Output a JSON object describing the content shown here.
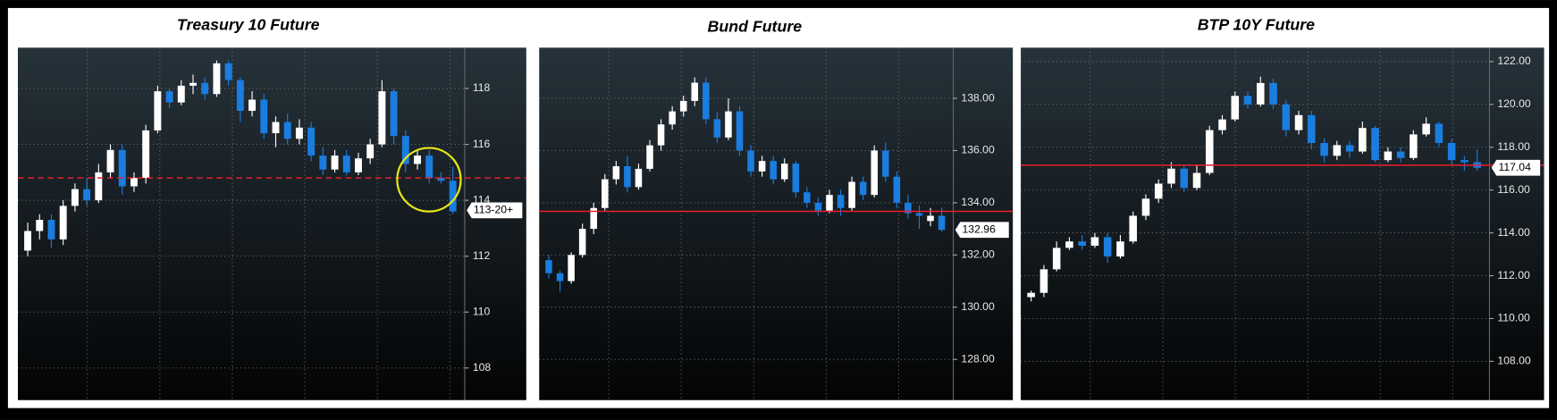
{
  "chart_data": [
    {
      "type": "candlestick",
      "title": "Treasury 10 Future",
      "open": [
        112.2,
        112.9,
        113.3,
        112.6,
        113.8,
        114.4,
        114.0,
        115.0,
        115.8,
        114.5,
        114.8,
        116.5,
        117.9,
        117.5,
        118.1,
        118.2,
        117.8,
        118.9,
        118.3,
        117.2,
        117.6,
        116.4,
        116.8,
        116.2,
        116.6,
        115.6,
        115.1,
        115.6,
        115.0,
        115.5,
        116.0,
        117.9,
        116.3,
        115.3,
        115.6,
        114.8,
        114.7
      ],
      "high": [
        113.2,
        113.5,
        113.5,
        114.0,
        114.6,
        114.8,
        115.3,
        116.0,
        116.0,
        115.0,
        116.7,
        118.1,
        118.0,
        118.3,
        118.5,
        118.4,
        119.0,
        119.0,
        118.4,
        117.9,
        117.8,
        117.0,
        117.1,
        116.9,
        116.8,
        115.9,
        115.8,
        115.8,
        115.7,
        116.2,
        118.3,
        118.0,
        116.5,
        115.8,
        115.8,
        115.0,
        115.2
      ],
      "low": [
        112.0,
        112.6,
        112.3,
        112.4,
        113.6,
        113.8,
        113.9,
        114.8,
        114.2,
        114.3,
        114.6,
        116.4,
        117.3,
        117.4,
        117.8,
        117.6,
        117.7,
        118.1,
        116.8,
        117.0,
        116.2,
        115.9,
        116.0,
        116.0,
        115.4,
        114.9,
        115.0,
        114.9,
        114.9,
        115.3,
        115.9,
        116.0,
        115.0,
        115.1,
        114.6,
        114.6,
        113.5
      ],
      "close": [
        112.9,
        113.3,
        112.6,
        113.8,
        114.4,
        114.0,
        115.0,
        115.8,
        114.5,
        114.8,
        116.5,
        117.9,
        117.5,
        118.1,
        118.2,
        117.8,
        118.9,
        118.3,
        117.2,
        117.6,
        116.4,
        116.8,
        116.2,
        116.6,
        115.6,
        115.1,
        115.6,
        115.0,
        115.5,
        116.0,
        117.9,
        116.3,
        115.3,
        115.6,
        114.8,
        114.7,
        113.6
      ],
      "ylim": [
        106.85,
        119.46
      ],
      "yticks": [
        108,
        110,
        112,
        114,
        116,
        118
      ],
      "ref_line": 114.8,
      "ref_dashed": true,
      "last_price": {
        "value": 113.640625,
        "label": "113-20+"
      },
      "up_color": "#ffffff",
      "down_color": "#1a7de0",
      "ref_color": "#e8202a",
      "grid": true
    },
    {
      "type": "candlestick",
      "title": "Bund Future",
      "open": [
        131.8,
        131.3,
        131.0,
        132.0,
        133.0,
        133.8,
        134.9,
        135.4,
        134.6,
        135.3,
        136.2,
        137.0,
        137.5,
        137.9,
        138.6,
        137.2,
        136.5,
        137.5,
        136.0,
        135.2,
        135.6,
        134.9,
        135.5,
        134.4,
        134.0,
        133.7,
        134.3,
        133.8,
        134.8,
        134.3,
        136.0,
        135.0,
        134.0,
        133.6,
        133.3,
        133.5
      ],
      "high": [
        132.0,
        131.4,
        132.1,
        133.2,
        134.0,
        135.1,
        135.6,
        135.8,
        135.5,
        136.4,
        137.2,
        137.7,
        138.1,
        138.8,
        138.8,
        137.5,
        138.0,
        137.7,
        136.2,
        135.8,
        135.8,
        135.7,
        135.6,
        134.6,
        134.2,
        134.5,
        134.5,
        135.0,
        135.0,
        136.2,
        136.3,
        135.2,
        134.3,
        133.9,
        133.8,
        133.8
      ],
      "low": [
        131.1,
        130.6,
        130.9,
        131.9,
        132.8,
        133.7,
        134.7,
        134.4,
        134.5,
        135.2,
        136.0,
        136.8,
        137.3,
        137.7,
        137.0,
        136.3,
        136.4,
        135.8,
        135.0,
        135.0,
        134.7,
        134.8,
        134.2,
        133.8,
        133.5,
        133.6,
        133.5,
        133.7,
        134.1,
        134.2,
        134.8,
        133.8,
        133.4,
        133.0,
        133.1,
        132.9
      ],
      "close": [
        131.3,
        131.0,
        132.0,
        133.0,
        133.8,
        134.9,
        135.4,
        134.6,
        135.3,
        136.2,
        137.0,
        137.5,
        137.9,
        138.6,
        137.2,
        136.5,
        137.5,
        136.0,
        135.2,
        135.6,
        134.9,
        135.5,
        134.4,
        134.0,
        133.7,
        134.3,
        133.8,
        134.8,
        134.3,
        136.0,
        135.0,
        134.0,
        133.6,
        133.5,
        133.5,
        132.96
      ],
      "ylim": [
        126.44,
        139.94
      ],
      "yticks": [
        {
          "value": 128,
          "label": "128.00"
        },
        {
          "value": 130,
          "label": "130.00"
        },
        {
          "value": 132,
          "label": "132.00"
        },
        {
          "value": 134,
          "label": "134.00"
        },
        {
          "value": 136,
          "label": "136.00"
        },
        {
          "value": 138,
          "label": "138.00"
        }
      ],
      "ref_line": 133.67,
      "ref_dashed": false,
      "last_price": 132.96,
      "up_color": "#ffffff",
      "down_color": "#1a7de0",
      "ref_color": "#e8202a",
      "grid": true
    },
    {
      "type": "candlestick",
      "title": "BTP 10Y Future",
      "open": [
        111.0,
        111.2,
        112.3,
        113.3,
        113.6,
        113.4,
        113.8,
        112.9,
        113.6,
        114.8,
        115.6,
        116.3,
        117.0,
        116.1,
        116.8,
        118.8,
        119.3,
        120.4,
        120.0,
        121.0,
        120.0,
        118.8,
        119.5,
        118.2,
        117.6,
        118.1,
        117.8,
        118.9,
        117.4,
        117.8,
        117.5,
        118.6,
        119.1,
        118.2,
        117.4,
        117.3
      ],
      "high": [
        111.3,
        112.5,
        113.6,
        113.8,
        113.9,
        114.0,
        114.0,
        113.9,
        115.0,
        115.8,
        116.5,
        117.3,
        117.2,
        117.2,
        119.0,
        119.5,
        120.6,
        120.6,
        121.3,
        121.2,
        120.2,
        119.7,
        119.7,
        118.4,
        118.3,
        118.3,
        119.2,
        119.0,
        118.0,
        118.0,
        118.8,
        119.4,
        119.2,
        118.4,
        117.6,
        117.9
      ],
      "low": [
        110.8,
        111.0,
        112.2,
        113.2,
        113.2,
        113.3,
        112.6,
        112.8,
        113.5,
        114.6,
        115.4,
        116.1,
        115.9,
        116.0,
        116.7,
        118.6,
        119.2,
        119.8,
        119.9,
        119.8,
        118.5,
        118.6,
        117.9,
        117.3,
        117.4,
        117.5,
        117.7,
        117.3,
        117.3,
        117.3,
        117.4,
        118.5,
        118.0,
        117.2,
        116.9,
        116.9
      ],
      "close": [
        111.2,
        112.3,
        113.3,
        113.6,
        113.4,
        113.8,
        112.9,
        113.6,
        114.8,
        115.6,
        116.3,
        117.0,
        116.1,
        116.8,
        118.8,
        119.3,
        120.4,
        120.0,
        121.0,
        120.0,
        118.8,
        119.5,
        118.2,
        117.6,
        118.1,
        117.8,
        118.9,
        117.4,
        117.8,
        117.5,
        118.6,
        119.1,
        118.2,
        117.4,
        117.3,
        117.04
      ],
      "ylim": [
        106.19,
        122.65
      ],
      "yticks": [
        {
          "value": 108,
          "label": "108.00"
        },
        {
          "value": 110,
          "label": "110.00"
        },
        {
          "value": 112,
          "label": "112.00"
        },
        {
          "value": 114,
          "label": "114.00"
        },
        {
          "value": 116,
          "label": "116.00"
        },
        {
          "value": 118,
          "label": "118.00"
        },
        {
          "value": 120,
          "label": "120.00"
        },
        {
          "value": 122,
          "label": "122.00"
        }
      ],
      "ref_line": 117.16,
      "ref_dashed": false,
      "last_price": 117.04,
      "up_color": "#ffffff",
      "down_color": "#1a7de0",
      "ref_color": "#e8202a",
      "grid": true
    }
  ]
}
